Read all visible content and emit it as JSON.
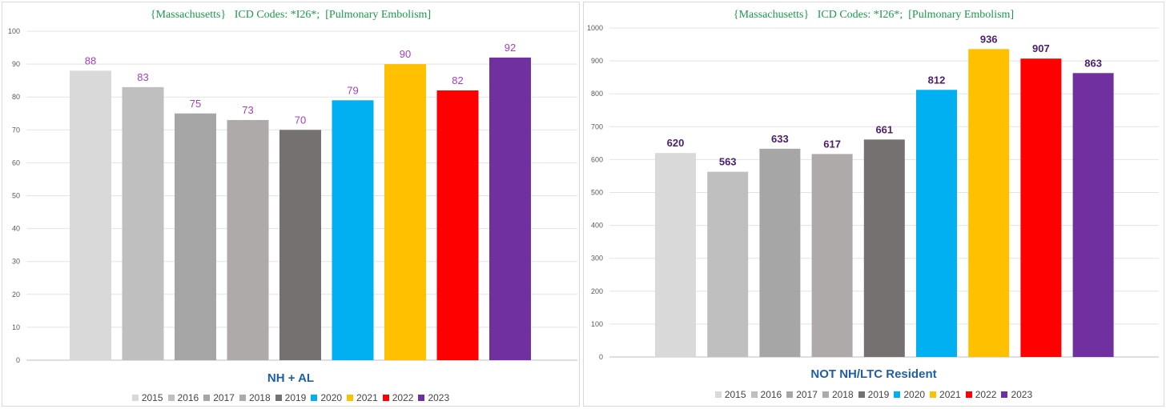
{
  "chart_data": [
    {
      "type": "bar",
      "title": "{Massachusetts}   ICD Codes: *I26*;  [Pulmonary Embolism]",
      "subtitle": "NH + AL",
      "categories": [
        "2015",
        "2016",
        "2017",
        "2018",
        "2019",
        "2020",
        "2021",
        "2022",
        "2023"
      ],
      "values": [
        88,
        83,
        75,
        73,
        70,
        79,
        90,
        82,
        92
      ],
      "ylim": [
        0,
        100
      ],
      "yticks": [
        "0",
        "10",
        "20",
        "30",
        "40",
        "50",
        "60",
        "70",
        "80",
        "90",
        "100"
      ],
      "label_color": "#a23fbf",
      "grid": true,
      "legend_position": "bottom"
    },
    {
      "type": "bar",
      "title": "{Massachusetts}   ICD Codes: *I26*;  [Pulmonary Embolism]",
      "subtitle": "NOT NH/LTC Resident",
      "categories": [
        "2015",
        "2016",
        "2017",
        "2018",
        "2019",
        "2020",
        "2021",
        "2022",
        "2023"
      ],
      "values": [
        620,
        563,
        633,
        617,
        661,
        812,
        936,
        907,
        863
      ],
      "ylim": [
        0,
        1000
      ],
      "yticks": [
        "0",
        "100",
        "200",
        "300",
        "400",
        "500",
        "600",
        "700",
        "800",
        "900",
        "1000"
      ],
      "label_color": "#4b1e6e",
      "label_bold": true,
      "grid": true,
      "legend_position": "bottom"
    }
  ],
  "colors": [
    "#d9d9d9",
    "#bfbfbf",
    "#a6a6a6",
    "#aeaaaa",
    "#767171",
    "#00b0f0",
    "#ffc000",
    "#ff0000",
    "#7030a0"
  ]
}
